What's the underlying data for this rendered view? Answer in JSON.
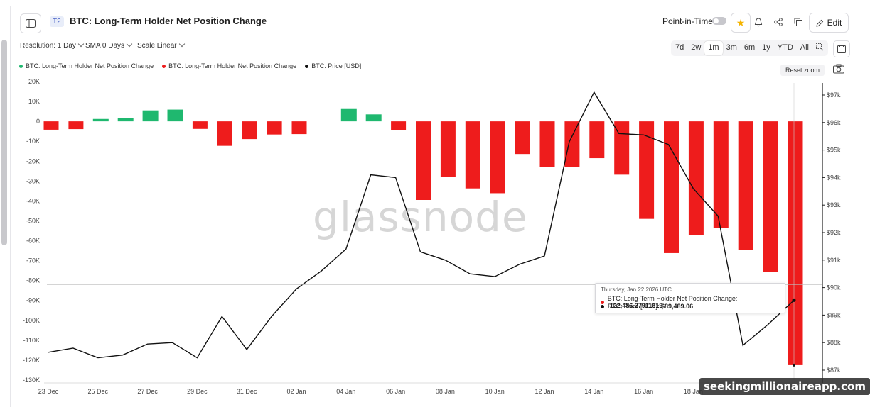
{
  "header": {
    "tier": "T2",
    "title": "BTC: Long-Term Holder Net Position Change",
    "point_in_time": "Point-in-Time",
    "edit": "Edit"
  },
  "controls": {
    "resolution": "Resolution: 1 Day",
    "sma": "SMA 0 Days",
    "scale": "Scale Linear",
    "ranges": [
      "7d",
      "2w",
      "1m",
      "3m",
      "6m",
      "1y",
      "YTD",
      "All"
    ],
    "active_range": "1m",
    "reset_zoom": "Reset zoom"
  },
  "watermark": "glassnode",
  "credit": "seekingmillionaireapp.com",
  "tooltip": {
    "date": "Thursday, Jan 22 2026 UTC",
    "row1_label": "BTC: Long-Term Holder Net Position Change:",
    "row1_value": "-122,486.27911619",
    "row2_label": "BTC: Price [USD]:",
    "row2_value": "$89,489.06"
  },
  "chart_data": {
    "type": "bar",
    "x": [
      "23 Dec",
      "24 Dec",
      "25 Dec",
      "26 Dec",
      "27 Dec",
      "28 Dec",
      "29 Dec",
      "30 Dec",
      "31 Dec",
      "01 Jan",
      "02 Jan",
      "03 Jan",
      "04 Jan",
      "05 Jan",
      "06 Jan",
      "07 Jan",
      "08 Jan",
      "09 Jan",
      "10 Jan",
      "11 Jan",
      "12 Jan",
      "13 Jan",
      "14 Jan",
      "15 Jan",
      "16 Jan",
      "17 Jan",
      "18 Jan",
      "19 Jan",
      "20 Jan",
      "21 Jan",
      "22 Jan"
    ],
    "x_tick_labels": [
      "23 Dec",
      "25 Dec",
      "27 Dec",
      "29 Dec",
      "31 Dec",
      "02 Jan",
      "04 Jan",
      "06 Jan",
      "08 Jan",
      "10 Jan",
      "12 Jan",
      "14 Jan",
      "16 Jan",
      "18 Jan"
    ],
    "series": [
      {
        "name": "BTC: Long-Term Holder Net Position Change",
        "axis": "left",
        "positive_color": "#1fb86f",
        "negative_color": "#ee1c1c",
        "values": [
          -4200,
          -3900,
          1200,
          1700,
          5500,
          5900,
          -3800,
          -12300,
          -8900,
          -6600,
          -6400,
          null,
          6200,
          3500,
          -4400,
          -39500,
          -27800,
          -33700,
          -36100,
          -16400,
          -22800,
          -22800,
          -18500,
          -26800,
          -49000,
          -66200,
          -57000,
          -53500,
          -64500,
          -75800,
          -122486.27911619
        ]
      },
      {
        "name": "BTC: Price [USD]",
        "axis": "right",
        "color": "#111111",
        "type": "line",
        "values": [
          87650,
          87800,
          87450,
          87550,
          87950,
          88000,
          87450,
          88950,
          87750,
          88950,
          89950,
          90600,
          91400,
          94100,
          94000,
          91300,
          91000,
          90500,
          90400,
          90850,
          91150,
          95300,
          97100,
          95600,
          95550,
          95200,
          93600,
          92600,
          87900,
          88650,
          89489.06
        ]
      }
    ],
    "left_axis": {
      "ylim": [
        -130000,
        20000
      ],
      "ticks": [
        20000,
        10000,
        0,
        -10000,
        -20000,
        -30000,
        -40000,
        -50000,
        -60000,
        -70000,
        -80000,
        -90000,
        -100000,
        -110000,
        -120000,
        -130000
      ],
      "tick_labels": [
        "20K",
        "10K",
        "0",
        "-10K",
        "-20K",
        "-30K",
        "-40K",
        "-50K",
        "-60K",
        "-70K",
        "-80K",
        "-90K",
        "-100K",
        "-110K",
        "-120K",
        "-130K"
      ]
    },
    "right_axis": {
      "ylim": [
        86750,
        97800
      ],
      "ticks": [
        97000,
        96000,
        95000,
        94000,
        93000,
        92000,
        91000,
        90000,
        89000,
        88000,
        87000
      ],
      "tick_labels": [
        "$97k",
        "$96k",
        "$95k",
        "$94k",
        "$93k",
        "$92k",
        "$91k",
        "$90k",
        "$89k",
        "$88k",
        "$87k"
      ]
    },
    "legend_position": "top-left",
    "grid": false
  }
}
